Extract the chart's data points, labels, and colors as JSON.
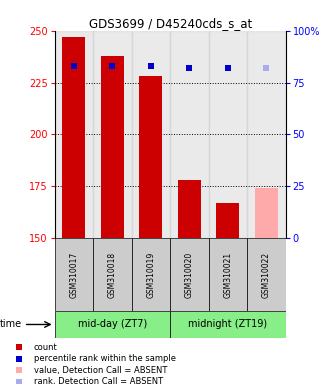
{
  "title": "GDS3699 / D45240cds_s_at",
  "samples": [
    "GSM310017",
    "GSM310018",
    "GSM310019",
    "GSM310020",
    "GSM310021",
    "GSM310022"
  ],
  "count_values": [
    247,
    238,
    228,
    178,
    167,
    174
  ],
  "rank_values": [
    83,
    83,
    83,
    82,
    82,
    82
  ],
  "count_absent": [
    false,
    false,
    false,
    false,
    false,
    true
  ],
  "rank_absent": [
    false,
    false,
    false,
    false,
    false,
    true
  ],
  "ylim_left": [
    150,
    250
  ],
  "ylim_right": [
    0,
    100
  ],
  "yticks_left": [
    150,
    175,
    200,
    225,
    250
  ],
  "yticks_right": [
    0,
    25,
    50,
    75,
    100
  ],
  "ytick_labels_right": [
    "0",
    "25",
    "50",
    "75",
    "100%"
  ],
  "group1_label": "mid-day (ZT7)",
  "group2_label": "midnight (ZT19)",
  "bar_color": "#cc0000",
  "bar_absent_color": "#ffaaaa",
  "rank_color": "#0000cc",
  "rank_absent_color": "#aaaaee",
  "group_bg_color": "#cccccc",
  "group_label_bg": "#88ee88",
  "time_label": "time",
  "legend_items": [
    {
      "label": "count",
      "color": "#cc0000"
    },
    {
      "label": "percentile rank within the sample",
      "color": "#0000cc"
    },
    {
      "label": "value, Detection Call = ABSENT",
      "color": "#ffaaaa"
    },
    {
      "label": "rank, Detection Call = ABSENT",
      "color": "#aaaaee"
    }
  ],
  "bar_width": 0.6,
  "marker_size": 5
}
